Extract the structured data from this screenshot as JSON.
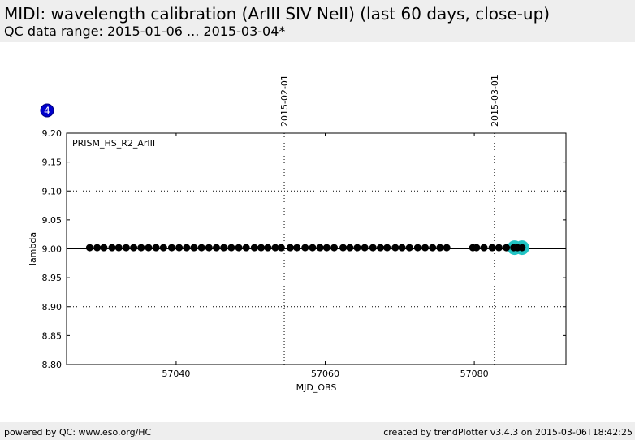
{
  "header": {
    "title": "MIDI: wavelength calibration (ArIII SIV NeII) (last 60 days, close-up)",
    "subtitle": "QC data range: 2015-01-06 ... 2015-03-04*"
  },
  "footer": {
    "left": "powered by QC: www.eso.org/HC",
    "right": "created by trendPlotter v3.4.3 on 2015-03-06T18:42:25"
  },
  "badge": {
    "label": "4",
    "color": "#0000cc"
  },
  "chart_data": {
    "type": "scatter",
    "title": "",
    "xlabel": "MJD_OBS",
    "ylabel": "lambda",
    "xlim": [
      57025.3,
      57092.3
    ],
    "ylim": [
      8.8,
      9.2
    ],
    "x_ticks": [
      57040,
      57060,
      57080
    ],
    "x_tick_labels": [
      "57040",
      "57060",
      "57080"
    ],
    "y_ticks": [
      8.8,
      8.85,
      8.9,
      8.95,
      9.0,
      9.05,
      9.1,
      9.15,
      9.2
    ],
    "y_tick_labels": [
      "8.80",
      "8.85",
      "8.90",
      "8.95",
      "9.00",
      "9.05",
      "9.10",
      "9.15",
      "9.20"
    ],
    "annotation": "PRISM_HS_R2_ArIII",
    "reference_line": {
      "y": 9.0,
      "color": "#000000"
    },
    "threshold_lines": [
      9.1,
      8.9
    ],
    "date_markers": [
      {
        "x": 57054.5,
        "label": "2015-02-01"
      },
      {
        "x": 57082.7,
        "label": "2015-03-01"
      }
    ],
    "series": [
      {
        "color": "#000000",
        "x": [
          57028.4,
          57029.4,
          57030.3,
          57031.4,
          57032.3,
          57033.3,
          57034.3,
          57035.3,
          57036.3,
          57037.3,
          57038.3,
          57039.4,
          57040.4,
          57041.4,
          57042.4,
          57043.4,
          57044.4,
          57045.4,
          57046.4,
          57047.4,
          57048.4,
          57049.4,
          57050.5,
          57051.4,
          57052.3,
          57053.3,
          57054.1,
          57055.3,
          57056.2,
          57057.3,
          57058.3,
          57059.3,
          57060.2,
          57061.2,
          57062.4,
          57063.3,
          57064.3,
          57065.3,
          57066.4,
          57067.4,
          57068.3,
          57069.4,
          57070.3,
          57071.3,
          57072.4,
          57073.4,
          57074.4,
          57075.4,
          57076.3,
          57079.8,
          57080.3,
          57081.3,
          57082.4,
          57083.3,
          57084.3,
          57085.3,
          57085.8,
          57086.4
        ],
        "y": [
          9.002,
          9.002,
          9.002,
          9.002,
          9.002,
          9.002,
          9.002,
          9.002,
          9.002,
          9.002,
          9.002,
          9.002,
          9.002,
          9.002,
          9.002,
          9.002,
          9.002,
          9.002,
          9.002,
          9.002,
          9.002,
          9.002,
          9.002,
          9.002,
          9.002,
          9.002,
          9.002,
          9.002,
          9.002,
          9.002,
          9.002,
          9.002,
          9.002,
          9.002,
          9.002,
          9.002,
          9.002,
          9.002,
          9.002,
          9.002,
          9.002,
          9.002,
          9.002,
          9.002,
          9.002,
          9.002,
          9.002,
          9.002,
          9.002,
          9.002,
          9.002,
          9.002,
          9.002,
          9.002,
          9.002,
          9.002,
          9.002,
          9.002
        ]
      },
      {
        "color": "#22c4c4",
        "x": [
          57085.4,
          57086.4
        ],
        "y": [
          9.002,
          9.002
        ]
      }
    ]
  }
}
